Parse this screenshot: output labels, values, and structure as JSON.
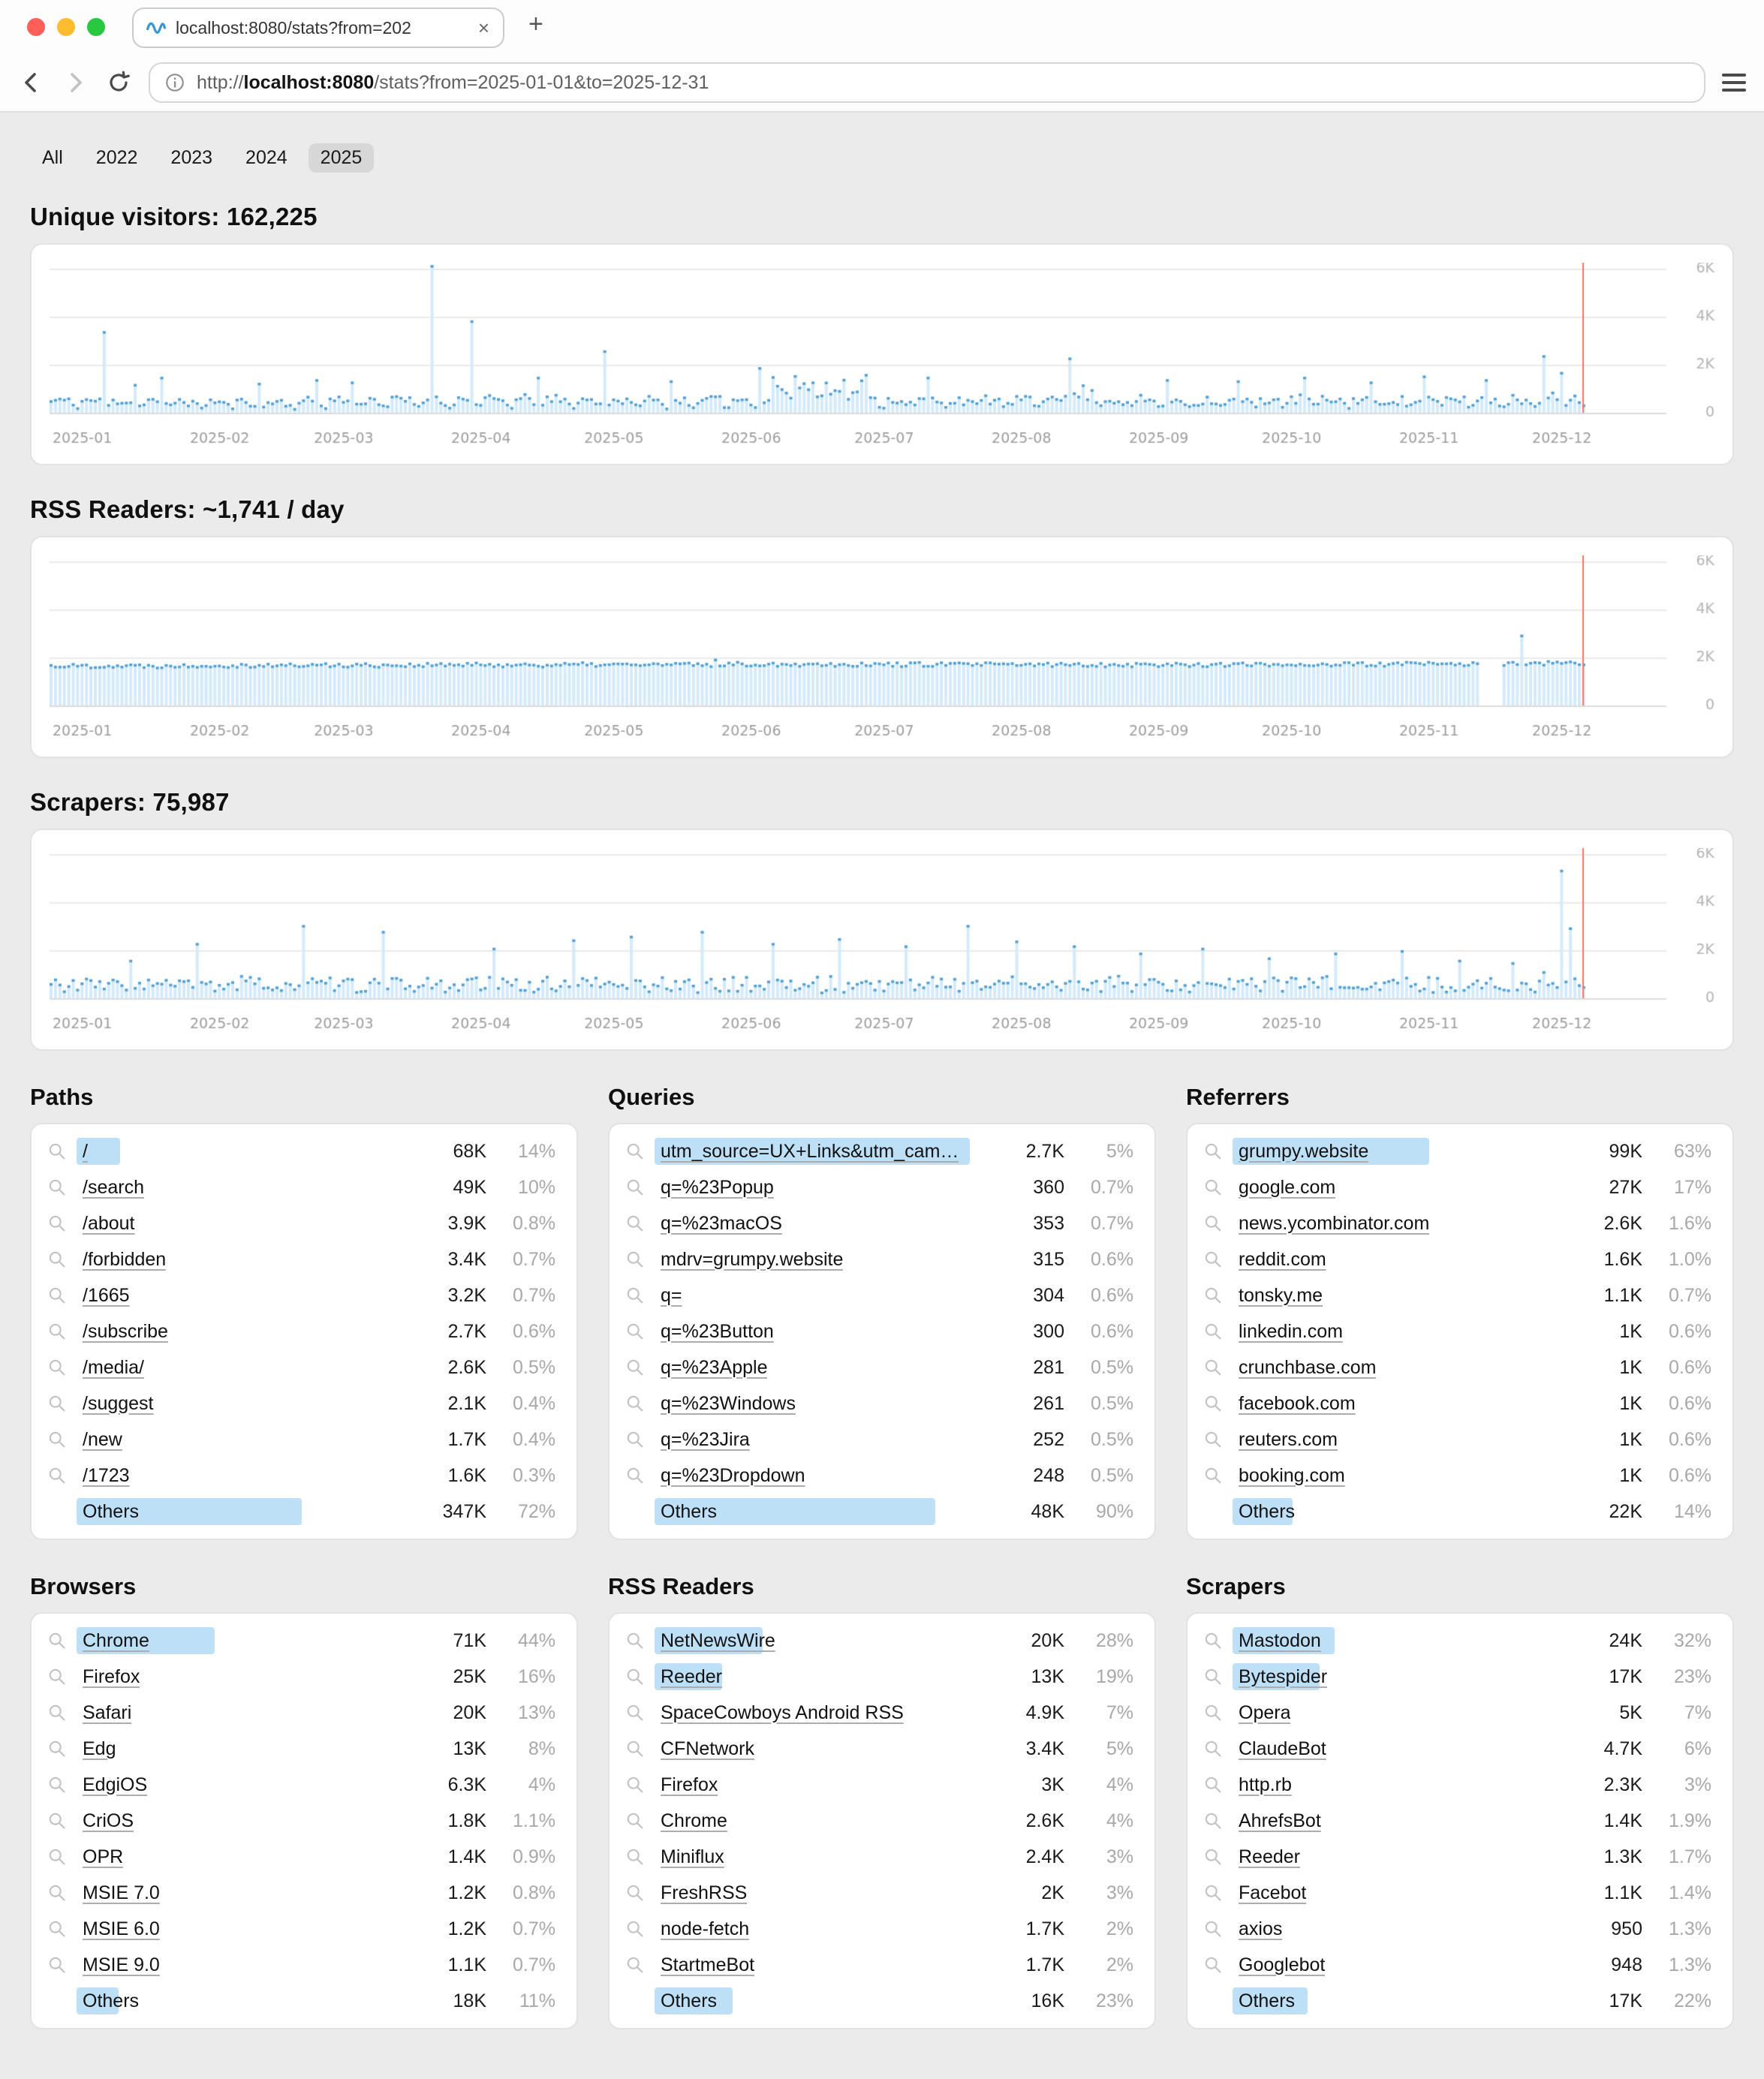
{
  "browser": {
    "tab": {
      "title": "localhost:8080/stats?from=202",
      "close_glyph": "×",
      "new_tab_glyph": "+"
    },
    "url": {
      "scheme": "http://",
      "host": "localhost:8080",
      "path": "/stats?from=2025-01-01&to=2025-12-31"
    }
  },
  "filters": {
    "items": [
      {
        "label": "All",
        "selected": false
      },
      {
        "label": "2022",
        "selected": false
      },
      {
        "label": "2023",
        "selected": false
      },
      {
        "label": "2024",
        "selected": false
      },
      {
        "label": "2025",
        "selected": true
      }
    ]
  },
  "headings": {
    "visitors": "Unique visitors: 162,225",
    "rss": "RSS Readers: ~1,741 / day",
    "scrapers": "Scrapers: 75,987"
  },
  "colors": {
    "page_bg": "#ebebeb",
    "bar_fill": "#d4eafb",
    "bar_cap": "#4d9fd8",
    "highlight": "#bee0f7",
    "today_line": "#ff7261",
    "grid_line": "#e9e9e9",
    "zero_line": "#dcdcdc",
    "axis_text": "#9c9c9c",
    "traffic_red": "#ff5f57",
    "traffic_yellow": "#febc2e",
    "traffic_green": "#28c840",
    "selected_chip": "#d7d7d7"
  },
  "chart_data": [
    {
      "type": "bar",
      "title": "Unique visitors",
      "total_text": "Unique visitors: 162,225",
      "x_tick_labels": [
        "2025-01",
        "2025-02",
        "2025-03",
        "2025-04",
        "2025-05",
        "2025-06",
        "2025-07",
        "2025-08",
        "2025-09",
        "2025-10",
        "2025-11",
        "2025-12"
      ],
      "y_tick_labels": [
        "0",
        "2K",
        "4K",
        "6K"
      ],
      "y_tick_values": [
        0,
        2000,
        4000,
        6000
      ],
      "y_max": 6600,
      "days": 365,
      "data_days": 347,
      "today_index": 346,
      "monthly_base": [
        520,
        470,
        540,
        540,
        530,
        560,
        560,
        540,
        540,
        560,
        570,
        650
      ],
      "weekly_pattern": [
        1,
        1.08,
        1.12,
        1.05,
        0.98,
        0.7,
        0.62
      ],
      "noise": 0.35,
      "boosts": [
        {
          "from": 163,
          "to": 184,
          "mul": 2.1
        },
        {
          "from": 225,
          "to": 237,
          "mul": 1.5
        }
      ],
      "spikes": {
        "12": 3400,
        "19": 1200,
        "25": 1500,
        "47": 1250,
        "60": 1400,
        "68": 1300,
        "86": 6150,
        "95": 3850,
        "110": 1500,
        "125": 2600,
        "140": 1350,
        "160": 1900,
        "198": 1500,
        "230": 2300,
        "252": 1400,
        "268": 1350,
        "283": 1500,
        "298": 1300,
        "310": 1550,
        "324": 1400,
        "337": 2400,
        "341": 1700,
        "346": 350
      },
      "zero_ranges": [],
      "seed": 11
    },
    {
      "type": "bar",
      "title": "RSS Readers",
      "total_text": "RSS Readers: ~1,741 / day",
      "x_tick_labels": [
        "2025-01",
        "2025-02",
        "2025-03",
        "2025-04",
        "2025-05",
        "2025-06",
        "2025-07",
        "2025-08",
        "2025-09",
        "2025-10",
        "2025-11",
        "2025-12"
      ],
      "y_tick_labels": [
        "0",
        "2K",
        "4K",
        "6K"
      ],
      "y_tick_values": [
        0,
        2000,
        4000,
        6000
      ],
      "y_max": 6600,
      "days": 365,
      "data_days": 347,
      "today_index": 346,
      "monthly_base": [
        1700,
        1720,
        1730,
        1740,
        1750,
        1770,
        1760,
        1750,
        1750,
        1760,
        1780,
        1800
      ],
      "weekly_pattern": [
        1,
        1,
        1,
        1,
        1,
        1,
        1
      ],
      "noise": 0.05,
      "boosts": [],
      "spikes": {
        "150": 1950,
        "332": 2950
      },
      "zero_ranges": [
        [
          323,
          327
        ]
      ],
      "seed": 22
    },
    {
      "type": "bar",
      "title": "Scrapers",
      "total_text": "Scrapers: 75,987",
      "x_tick_labels": [
        "2025-01",
        "2025-02",
        "2025-03",
        "2025-04",
        "2025-05",
        "2025-06",
        "2025-07",
        "2025-08",
        "2025-09",
        "2025-10",
        "2025-11",
        "2025-12"
      ],
      "y_tick_labels": [
        "0",
        "2K",
        "4K",
        "6K"
      ],
      "y_tick_values": [
        0,
        2000,
        4000,
        6000
      ],
      "y_max": 6600,
      "days": 365,
      "data_days": 347,
      "today_index": 346,
      "monthly_base": [
        600,
        620,
        600,
        620,
        640,
        620,
        640,
        660,
        600,
        620,
        600,
        700
      ],
      "weekly_pattern": [
        1,
        1.1,
        0.9,
        1.05,
        0.95,
        1,
        0.85
      ],
      "noise": 0.5,
      "boosts": [],
      "spikes": {
        "18": 1600,
        "33": 2300,
        "57": 3050,
        "75": 2800,
        "100": 2100,
        "118": 2450,
        "131": 2600,
        "147": 2800,
        "163": 2300,
        "178": 2500,
        "193": 2200,
        "207": 3050,
        "218": 2400,
        "231": 2200,
        "246": 1900,
        "260": 2100,
        "275": 1700,
        "290": 1900,
        "305": 2000,
        "318": 1600,
        "330": 1500,
        "341": 5350,
        "343": 2950,
        "346": 500
      },
      "zero_ranges": [],
      "seed": 33
    }
  ],
  "tables": [
    {
      "title": "Paths",
      "rows": [
        {
          "label": "/",
          "value": "68K",
          "pct": "14%",
          "bar": 29
        },
        {
          "label": "/search",
          "value": "49K",
          "pct": "10%"
        },
        {
          "label": "/about",
          "value": "3.9K",
          "pct": "0.8%"
        },
        {
          "label": "/forbidden",
          "value": "3.4K",
          "pct": "0.7%"
        },
        {
          "label": "/1665",
          "value": "3.2K",
          "pct": "0.7%"
        },
        {
          "label": "/subscribe",
          "value": "2.7K",
          "pct": "0.6%"
        },
        {
          "label": "/media/",
          "value": "2.6K",
          "pct": "0.5%"
        },
        {
          "label": "/suggest",
          "value": "2.1K",
          "pct": "0.4%"
        },
        {
          "label": "/new",
          "value": "1.7K",
          "pct": "0.4%"
        },
        {
          "label": "/1723",
          "value": "1.6K",
          "pct": "0.3%"
        },
        {
          "label": "Others",
          "value": "347K",
          "pct": "72%",
          "bar": 150,
          "link": false,
          "icon": false
        }
      ]
    },
    {
      "title": "Queries",
      "rows": [
        {
          "label": "utm_source=UX+Links&utm_cam…",
          "value": "2.7K",
          "pct": "5%",
          "bar": 216
        },
        {
          "label": "q=%23Popup",
          "value": "360",
          "pct": "0.7%"
        },
        {
          "label": "q=%23macOS",
          "value": "353",
          "pct": "0.7%"
        },
        {
          "label": "mdrv=grumpy.website",
          "value": "315",
          "pct": "0.6%"
        },
        {
          "label": "q=",
          "value": "304",
          "pct": "0.6%"
        },
        {
          "label": "q=%23Button",
          "value": "300",
          "pct": "0.6%"
        },
        {
          "label": "q=%23Apple",
          "value": "281",
          "pct": "0.5%"
        },
        {
          "label": "q=%23Windows",
          "value": "261",
          "pct": "0.5%"
        },
        {
          "label": "q=%23Jira",
          "value": "252",
          "pct": "0.5%"
        },
        {
          "label": "q=%23Dropdown",
          "value": "248",
          "pct": "0.5%"
        },
        {
          "label": "Others",
          "value": "48K",
          "pct": "90%",
          "bar": 187,
          "link": false,
          "icon": false
        }
      ]
    },
    {
      "title": "Referrers",
      "rows": [
        {
          "label": "grumpy.website",
          "value": "99K",
          "pct": "63%",
          "bar": 131
        },
        {
          "label": "google.com",
          "value": "27K",
          "pct": "17%"
        },
        {
          "label": "news.ycombinator.com",
          "value": "2.6K",
          "pct": "1.6%"
        },
        {
          "label": "reddit.com",
          "value": "1.6K",
          "pct": "1.0%"
        },
        {
          "label": "tonsky.me",
          "value": "1.1K",
          "pct": "0.7%"
        },
        {
          "label": "linkedin.com",
          "value": "1K",
          "pct": "0.6%"
        },
        {
          "label": "crunchbase.com",
          "value": "1K",
          "pct": "0.6%"
        },
        {
          "label": "facebook.com",
          "value": "1K",
          "pct": "0.6%"
        },
        {
          "label": "reuters.com",
          "value": "1K",
          "pct": "0.6%"
        },
        {
          "label": "booking.com",
          "value": "1K",
          "pct": "0.6%"
        },
        {
          "label": "Others",
          "value": "22K",
          "pct": "14%",
          "bar": 40,
          "link": false,
          "icon": false
        }
      ]
    },
    {
      "title": "Browsers",
      "rows": [
        {
          "label": "Chrome",
          "value": "71K",
          "pct": "44%",
          "bar": 92
        },
        {
          "label": "Firefox",
          "value": "25K",
          "pct": "16%"
        },
        {
          "label": "Safari",
          "value": "20K",
          "pct": "13%"
        },
        {
          "label": "Edg",
          "value": "13K",
          "pct": "8%"
        },
        {
          "label": "EdgiOS",
          "value": "6.3K",
          "pct": "4%"
        },
        {
          "label": "CriOS",
          "value": "1.8K",
          "pct": "1.1%"
        },
        {
          "label": "OPR",
          "value": "1.4K",
          "pct": "0.9%"
        },
        {
          "label": "MSIE 7.0",
          "value": "1.2K",
          "pct": "0.8%"
        },
        {
          "label": "MSIE 6.0",
          "value": "1.2K",
          "pct": "0.7%"
        },
        {
          "label": "MSIE 9.0",
          "value": "1.1K",
          "pct": "0.7%"
        },
        {
          "label": "Others",
          "value": "18K",
          "pct": "11%",
          "bar": 28,
          "link": false,
          "icon": false
        }
      ]
    },
    {
      "title": "RSS Readers",
      "rows": [
        {
          "label": "NetNewsWire",
          "value": "20K",
          "pct": "28%",
          "bar": 72
        },
        {
          "label": "Reeder",
          "value": "13K",
          "pct": "19%",
          "bar": 45
        },
        {
          "label": "SpaceCowboys Android RSS",
          "value": "4.9K",
          "pct": "7%"
        },
        {
          "label": "CFNetwork",
          "value": "3.4K",
          "pct": "5%"
        },
        {
          "label": "Firefox",
          "value": "3K",
          "pct": "4%"
        },
        {
          "label": "Chrome",
          "value": "2.6K",
          "pct": "4%"
        },
        {
          "label": "Miniflux",
          "value": "2.4K",
          "pct": "3%"
        },
        {
          "label": "FreshRSS",
          "value": "2K",
          "pct": "3%"
        },
        {
          "label": "node-fetch",
          "value": "1.7K",
          "pct": "2%"
        },
        {
          "label": "StartmeBot",
          "value": "1.7K",
          "pct": "2%"
        },
        {
          "label": "Others",
          "value": "16K",
          "pct": "23%",
          "bar": 52,
          "link": false,
          "icon": false
        }
      ]
    },
    {
      "title": "Scrapers",
      "rows": [
        {
          "label": "Mastodon",
          "value": "24K",
          "pct": "32%",
          "bar": 68
        },
        {
          "label": "Bytespider",
          "value": "17K",
          "pct": "23%",
          "bar": 58
        },
        {
          "label": "Opera",
          "value": "5K",
          "pct": "7%"
        },
        {
          "label": "ClaudeBot",
          "value": "4.7K",
          "pct": "6%"
        },
        {
          "label": "http.rb",
          "value": "2.3K",
          "pct": "3%"
        },
        {
          "label": "AhrefsBot",
          "value": "1.4K",
          "pct": "1.9%"
        },
        {
          "label": "Reeder",
          "value": "1.3K",
          "pct": "1.7%"
        },
        {
          "label": "Facebot",
          "value": "1.1K",
          "pct": "1.4%"
        },
        {
          "label": "axios",
          "value": "950",
          "pct": "1.3%"
        },
        {
          "label": "Googlebot",
          "value": "948",
          "pct": "1.3%"
        },
        {
          "label": "Others",
          "value": "17K",
          "pct": "22%",
          "bar": 50,
          "link": false,
          "icon": false
        }
      ]
    }
  ]
}
